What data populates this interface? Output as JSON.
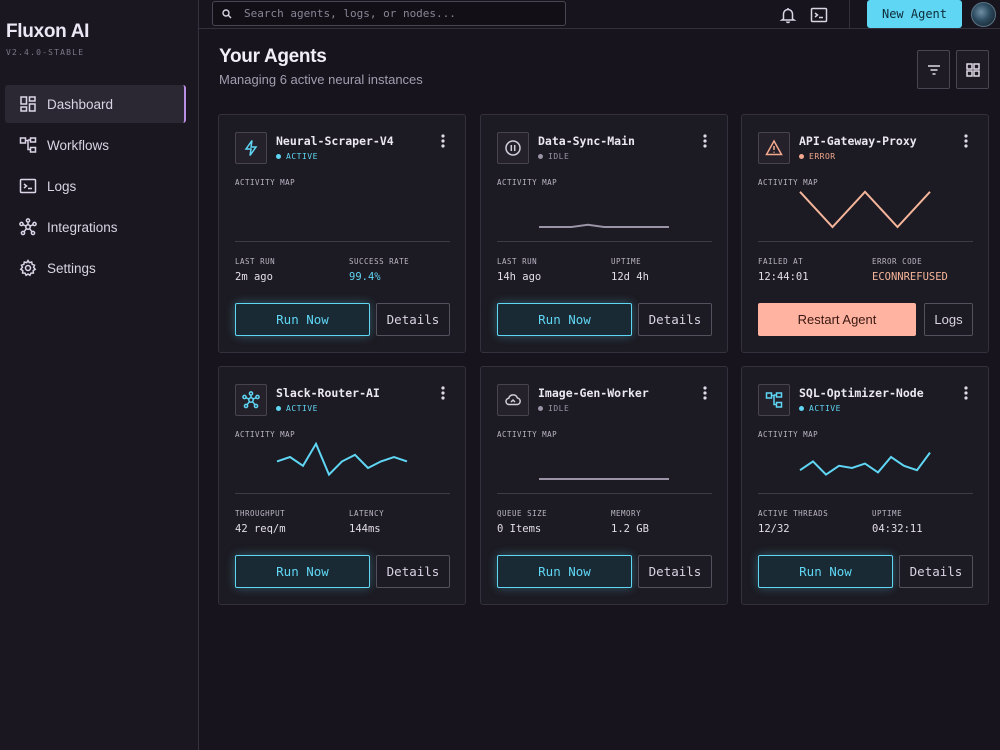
{
  "app": {
    "name": "Fluxon AI",
    "version": "V2.4.0-STABLE"
  },
  "sidebar": {
    "items": [
      {
        "label": "Dashboard",
        "icon": "dashboard-icon",
        "active": true
      },
      {
        "label": "Workflows",
        "icon": "workflow-icon",
        "active": false
      },
      {
        "label": "Logs",
        "icon": "terminal-icon",
        "active": false
      },
      {
        "label": "Integrations",
        "icon": "hub-icon",
        "active": false
      },
      {
        "label": "Settings",
        "icon": "gear-icon",
        "active": false
      }
    ]
  },
  "topbar": {
    "search_placeholder": "Search agents, logs, or nodes...",
    "new_agent_label": "New Agent",
    "icons": [
      "search-icon",
      "bell-icon",
      "terminal-icon",
      "avatar"
    ]
  },
  "header": {
    "title": "Your Agents",
    "subtitle": "Managing 6 active neural instances",
    "actions": [
      "filter-icon",
      "grid-view-icon"
    ]
  },
  "colors": {
    "accent": "#5fd6f4",
    "idle": "#9a94a6",
    "error": "#f5a98e",
    "background": "#17141d",
    "card": "#1c1a22"
  },
  "agents": [
    {
      "name": "Neural-Scraper-V4",
      "status": "ACTIVE",
      "icon": "bolt-icon",
      "activity_label": "ACTIVITY MAP",
      "sparkline": [],
      "metric1_label": "LAST RUN",
      "metric1_value": "2m ago",
      "metric2_label": "SUCCESS RATE",
      "metric2_value": "99.4%",
      "primary_label": "Run Now",
      "secondary_label": "Details"
    },
    {
      "name": "Data-Sync-Main",
      "status": "IDLE",
      "icon": "pause-icon",
      "activity_label": "ACTIVITY MAP",
      "sparkline": [
        0,
        0,
        0,
        0.5,
        0,
        0,
        0,
        0,
        0
      ],
      "metric1_label": "LAST RUN",
      "metric1_value": "14h ago",
      "metric2_label": "UPTIME",
      "metric2_value": "12d 4h",
      "primary_label": "Run Now",
      "secondary_label": "Details"
    },
    {
      "name": "API-Gateway-Proxy",
      "status": "ERROR",
      "icon": "warning-icon",
      "activity_label": "ACTIVITY MAP",
      "sparkline": [
        8,
        0,
        8,
        0,
        8
      ],
      "metric1_label": "FAILED AT",
      "metric1_value": "12:44:01",
      "metric2_label": "ERROR CODE",
      "metric2_value": "ECONNREFUSED",
      "primary_label": "Restart Agent",
      "secondary_label": "Logs"
    },
    {
      "name": "Slack-Router-AI",
      "status": "ACTIVE",
      "icon": "hub-icon",
      "activity_label": "ACTIVITY MAP",
      "sparkline": [
        4,
        5,
        3,
        8,
        1,
        4,
        5.5,
        2.5,
        4,
        5,
        4
      ],
      "metric1_label": "THROUGHPUT",
      "metric1_value": "42 req/m",
      "metric2_label": "LATENCY",
      "metric2_value": "144ms",
      "primary_label": "Run Now",
      "secondary_label": "Details"
    },
    {
      "name": "Image-Gen-Worker",
      "status": "IDLE",
      "icon": "cloud-sync-icon",
      "activity_label": "ACTIVITY MAP",
      "sparkline": [
        0,
        0,
        0,
        0,
        0,
        0,
        0,
        0,
        0
      ],
      "metric1_label": "QUEUE SIZE",
      "metric1_value": "0 Items",
      "metric2_label": "MEMORY",
      "metric2_value": "1.2 GB",
      "primary_label": "Run Now",
      "secondary_label": "Details"
    },
    {
      "name": "SQL-Optimizer-Node",
      "status": "ACTIVE",
      "icon": "workflow-icon",
      "activity_label": "ACTIVITY MAP",
      "sparkline": [
        2,
        4,
        1,
        3,
        2.5,
        3.5,
        1.5,
        5,
        3,
        2,
        6
      ],
      "metric1_label": "ACTIVE THREADS",
      "metric1_value": "12/32",
      "metric2_label": "UPTIME",
      "metric2_value": "04:32:11",
      "primary_label": "Run Now",
      "secondary_label": "Details"
    }
  ]
}
